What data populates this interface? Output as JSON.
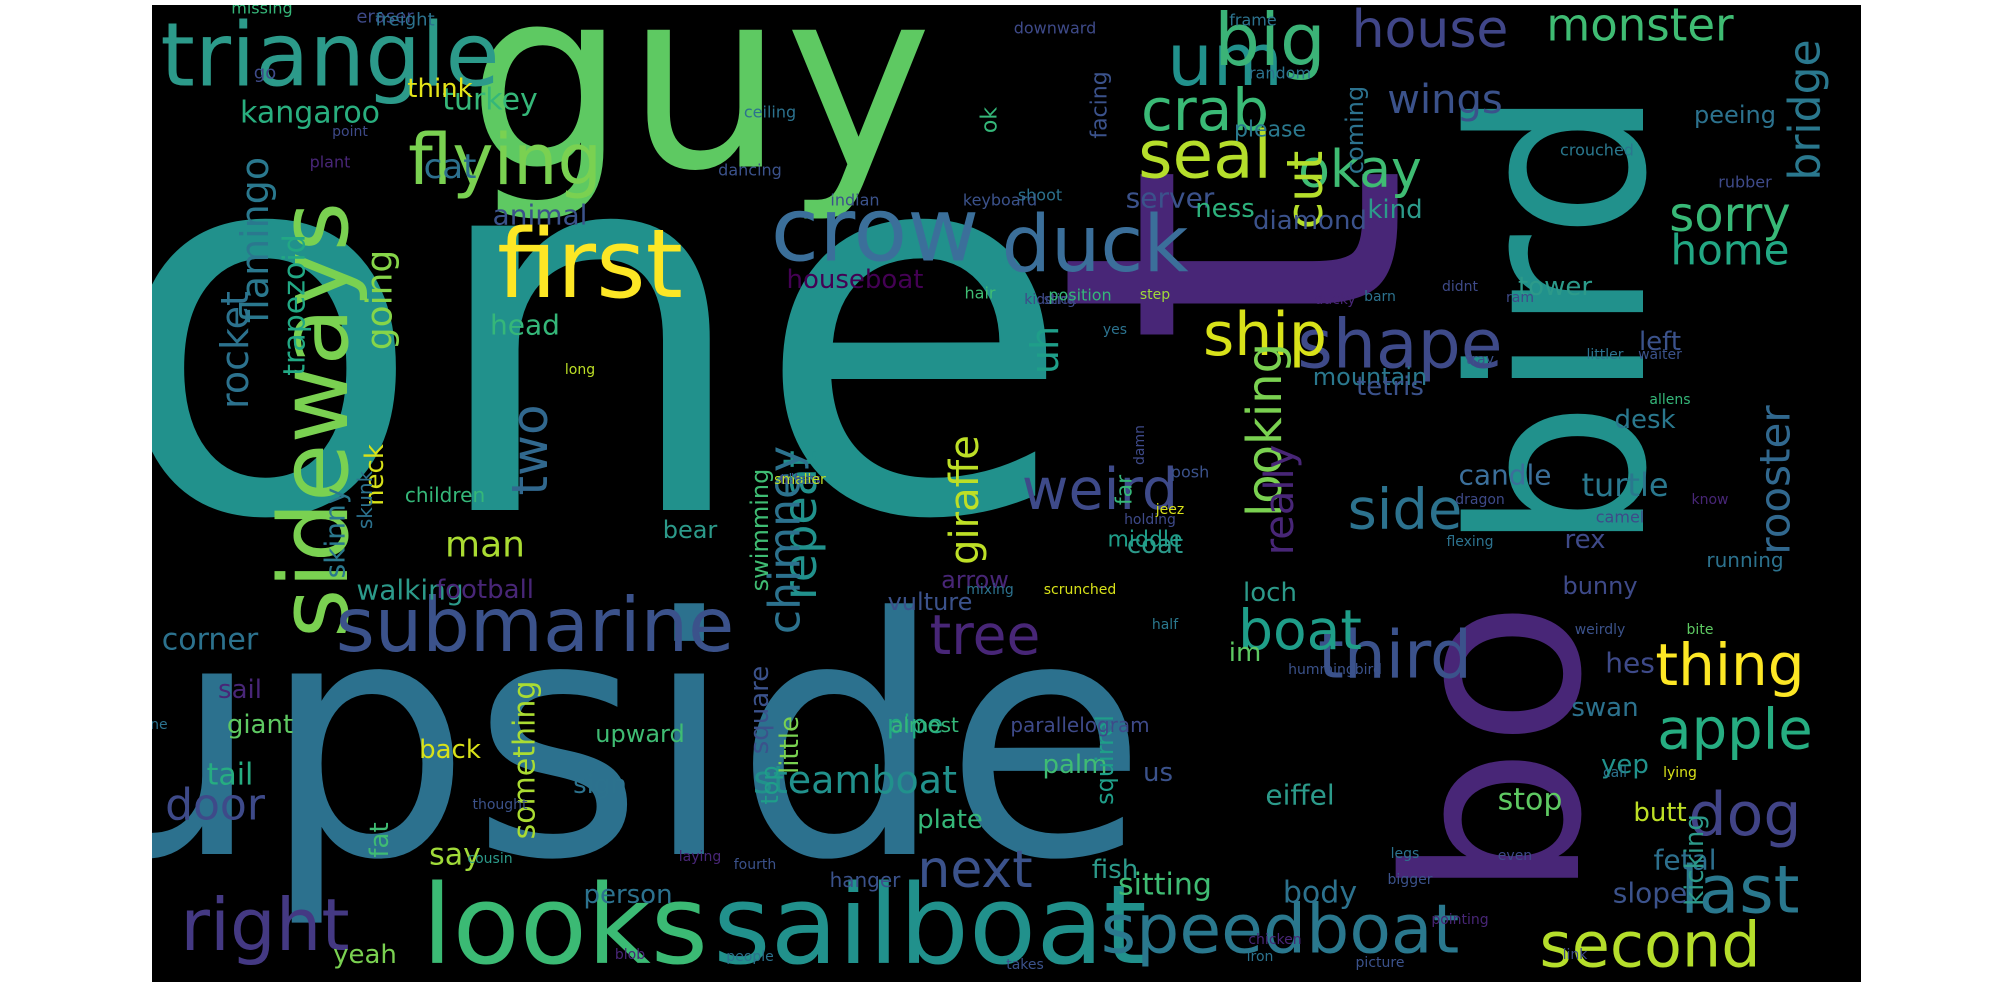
{
  "chart_data": {
    "type": "wordcloud",
    "title": "",
    "background": "#000000",
    "palette": "viridis",
    "words": [
      {
        "text": "one",
        "color": "#21918c"
      },
      {
        "text": "upside",
        "color": "#2c718e"
      },
      {
        "text": "guy",
        "color": "#5ec962"
      },
      {
        "text": "bird",
        "color": "#21918c"
      },
      {
        "text": "bo",
        "color": "#482677"
      },
      {
        "text": "t",
        "color": "#482677"
      },
      {
        "text": "sailboat",
        "color": "#21918c"
      },
      {
        "text": "looks",
        "color": "#3bba74"
      },
      {
        "text": "sideways",
        "color": "#7ad151"
      },
      {
        "text": "triangle",
        "color": "#2c9a8a"
      },
      {
        "text": "first",
        "color": "#fde725"
      },
      {
        "text": "submarine",
        "color": "#3b528b"
      },
      {
        "text": "crow",
        "color": "#3b6f9a"
      },
      {
        "text": "speedboat",
        "color": "#2a788e"
      },
      {
        "text": "um",
        "color": "#21918c"
      },
      {
        "text": "big",
        "color": "#3bb377"
      },
      {
        "text": "duck",
        "color": "#3b6f9a"
      },
      {
        "text": "flying",
        "color": "#7ad151"
      },
      {
        "text": "seal",
        "color": "#b5de2b"
      },
      {
        "text": "shape",
        "color": "#3e4a89"
      },
      {
        "text": "third",
        "color": "#3b528b"
      },
      {
        "text": "house",
        "color": "#404688"
      },
      {
        "text": "monster",
        "color": "#3fbc73"
      },
      {
        "text": "second",
        "color": "#b5de2b"
      },
      {
        "text": "right",
        "color": "#443983"
      },
      {
        "text": "last",
        "color": "#2a788e"
      },
      {
        "text": "dog",
        "color": "#414487"
      },
      {
        "text": "apple",
        "color": "#26ad81"
      },
      {
        "text": "thing",
        "color": "#fde725"
      },
      {
        "text": "ship",
        "color": "#d8e219"
      },
      {
        "text": "crab",
        "color": "#3aba76"
      },
      {
        "text": "weird",
        "color": "#3e4a89"
      },
      {
        "text": "side",
        "color": "#2c728e"
      },
      {
        "text": "boat",
        "color": "#1f9e89"
      },
      {
        "text": "okay",
        "color": "#3fbc73"
      },
      {
        "text": "sorry",
        "color": "#38b977"
      },
      {
        "text": "home",
        "color": "#22a884"
      },
      {
        "text": "cut",
        "color": "#b5de2b"
      },
      {
        "text": "looking",
        "color": "#7ad151"
      },
      {
        "text": "bridge",
        "color": "#2a788e"
      },
      {
        "text": "wings",
        "color": "#3b528b"
      },
      {
        "text": "rooster",
        "color": "#31688e"
      },
      {
        "text": "tree",
        "color": "#482677"
      },
      {
        "text": "next",
        "color": "#3b528b"
      },
      {
        "text": "giraffe",
        "color": "#bddf26"
      },
      {
        "text": "repeat",
        "color": "#21918c"
      },
      {
        "text": "chimney",
        "color": "#2c728e"
      },
      {
        "text": "two",
        "color": "#31688e"
      },
      {
        "text": "going",
        "color": "#86d549"
      },
      {
        "text": "man",
        "color": "#aadc32"
      },
      {
        "text": "cat",
        "color": "#2d708e"
      },
      {
        "text": "kangaroo",
        "color": "#29af7f"
      },
      {
        "text": "turkey",
        "color": "#35b779"
      },
      {
        "text": "think",
        "color": "#e5e419"
      },
      {
        "text": "animal",
        "color": "#3b528b"
      },
      {
        "text": "head",
        "color": "#35b779"
      },
      {
        "text": "houseboat",
        "color": "#440154"
      },
      {
        "text": "server",
        "color": "#3b528b"
      },
      {
        "text": "ness",
        "color": "#2db27d"
      },
      {
        "text": "diamond",
        "color": "#3b528b"
      },
      {
        "text": "kind",
        "color": "#2c9a8a"
      },
      {
        "text": "rocket",
        "color": "#2c728e"
      },
      {
        "text": "flamingo",
        "color": "#2a788e"
      },
      {
        "text": "trapezoid",
        "color": "#22a884"
      },
      {
        "text": "uh",
        "color": "#1f9e89"
      },
      {
        "text": "mountain",
        "color": "#2a788e"
      },
      {
        "text": "tetris",
        "color": "#3b528b"
      },
      {
        "text": "desk",
        "color": "#2a788e"
      },
      {
        "text": "left",
        "color": "#3b528b"
      },
      {
        "text": "tower",
        "color": "#2c9a8a"
      },
      {
        "text": "candle",
        "color": "#3b6f9a"
      },
      {
        "text": "turtle",
        "color": "#2a788e"
      },
      {
        "text": "rex",
        "color": "#3e4a89"
      },
      {
        "text": "bunny",
        "color": "#3e4a89"
      },
      {
        "text": "hes",
        "color": "#3e4a89"
      },
      {
        "text": "swan",
        "color": "#2c728e"
      },
      {
        "text": "yep",
        "color": "#21918c"
      },
      {
        "text": "stop",
        "color": "#5ec962"
      },
      {
        "text": "butt",
        "color": "#bddf26"
      },
      {
        "text": "fetal",
        "color": "#2d708e"
      },
      {
        "text": "kicking",
        "color": "#2c9a8a"
      },
      {
        "text": "slope",
        "color": "#3b528b"
      },
      {
        "text": "body",
        "color": "#2c728e"
      },
      {
        "text": "eiffel",
        "color": "#2c9a8a"
      },
      {
        "text": "sitting",
        "color": "#3fbc73"
      },
      {
        "text": "fish",
        "color": "#2c9a8a"
      },
      {
        "text": "palm",
        "color": "#3fbc73"
      },
      {
        "text": "plate",
        "color": "#35b779"
      },
      {
        "text": "pipe",
        "color": "#22a884"
      },
      {
        "text": "squirrel",
        "color": "#1f9e89"
      },
      {
        "text": "us",
        "color": "#3b528b"
      },
      {
        "text": "im",
        "color": "#5ec962"
      },
      {
        "text": "loch",
        "color": "#2c9a8a"
      },
      {
        "text": "coat",
        "color": "#2c9a8a"
      },
      {
        "text": "vulture",
        "color": "#3b528b"
      },
      {
        "text": "arrow",
        "color": "#482677"
      },
      {
        "text": "really",
        "color": "#482677"
      },
      {
        "text": "steamboat",
        "color": "#21918c"
      },
      {
        "text": "little",
        "color": "#7ad151"
      },
      {
        "text": "top",
        "color": "#1f9e89"
      },
      {
        "text": "square",
        "color": "#3b528b"
      },
      {
        "text": "swimming",
        "color": "#3fbc73"
      },
      {
        "text": "walking",
        "color": "#2c9a8a"
      },
      {
        "text": "skinny",
        "color": "#2a788e"
      },
      {
        "text": "neck",
        "color": "#d8e219"
      },
      {
        "text": "corner",
        "color": "#2c728e"
      },
      {
        "text": "football",
        "color": "#482677"
      },
      {
        "text": "door",
        "color": "#3e4a89"
      },
      {
        "text": "say",
        "color": "#a0da39"
      },
      {
        "text": "sail",
        "color": "#482677"
      },
      {
        "text": "giant",
        "color": "#5ec962"
      },
      {
        "text": "tail",
        "color": "#26ad81"
      },
      {
        "text": "yeah",
        "color": "#7ad151"
      },
      {
        "text": "fat",
        "color": "#3fbc73"
      },
      {
        "text": "back",
        "color": "#d8e219"
      },
      {
        "text": "something",
        "color": "#aadc32"
      },
      {
        "text": "sign",
        "color": "#2c728e"
      },
      {
        "text": "person",
        "color": "#2c728e"
      },
      {
        "text": "upward",
        "color": "#3fbc73"
      },
      {
        "text": "bear",
        "color": "#2c9a8a"
      },
      {
        "text": "middle",
        "color": "#1f9e89"
      },
      {
        "text": "far",
        "color": "#35b779"
      },
      {
        "text": "ok",
        "color": "#35b779"
      },
      {
        "text": "facing",
        "color": "#3b528b"
      },
      {
        "text": "please",
        "color": "#2a788e"
      },
      {
        "text": "coming",
        "color": "#2c728e"
      },
      {
        "text": "peeing",
        "color": "#2c728e"
      },
      {
        "text": "running",
        "color": "#2c728e"
      },
      {
        "text": "hanger",
        "color": "#3b528b"
      },
      {
        "text": "almost",
        "color": "#35b779"
      },
      {
        "text": "parallelogram",
        "color": "#3e4a89"
      },
      {
        "text": "skunk",
        "color": "#2c728e"
      },
      {
        "text": "children",
        "color": "#35b779"
      },
      {
        "text": "missing",
        "color": "#35b779"
      },
      {
        "text": "eraser",
        "color": "#3e4a89"
      },
      {
        "text": "freight",
        "color": "#2c728e"
      },
      {
        "text": "downward",
        "color": "#3e4a89"
      },
      {
        "text": "frame",
        "color": "#2c728e"
      },
      {
        "text": "random",
        "color": "#2c728e"
      },
      {
        "text": "go",
        "color": "#3e4a89"
      },
      {
        "text": "point",
        "color": "#3e4a89"
      },
      {
        "text": "plant",
        "color": "#482677"
      },
      {
        "text": "ceiling",
        "color": "#2c728e"
      },
      {
        "text": "dancing",
        "color": "#3b528b"
      },
      {
        "text": "indian",
        "color": "#3b528b"
      },
      {
        "text": "keyboard",
        "color": "#3b528b"
      },
      {
        "text": "crouched",
        "color": "#2a788e"
      },
      {
        "text": "rubber",
        "color": "#3e4a89"
      },
      {
        "text": "shoot",
        "color": "#2c728e"
      },
      {
        "text": "step",
        "color": "#a0da39"
      },
      {
        "text": "kidding",
        "color": "#3e4a89"
      },
      {
        "text": "hair",
        "color": "#3fbc73"
      },
      {
        "text": "stick",
        "color": "#3e4a89"
      },
      {
        "text": "position",
        "color": "#35b779"
      },
      {
        "text": "barn",
        "color": "#2c728e"
      },
      {
        "text": "didnt",
        "color": "#3e4a89"
      },
      {
        "text": "ducky",
        "color": "#482677"
      },
      {
        "text": "ram",
        "color": "#3e4a89"
      },
      {
        "text": "yes",
        "color": "#2c728e"
      },
      {
        "text": "tray",
        "color": "#3b528b"
      },
      {
        "text": "littler",
        "color": "#2c728e"
      },
      {
        "text": "waiter",
        "color": "#3b528b"
      },
      {
        "text": "long",
        "color": "#bddf26"
      },
      {
        "text": "dragon",
        "color": "#3e4a89"
      },
      {
        "text": "damn",
        "color": "#3e4a89"
      },
      {
        "text": "posh",
        "color": "#3b528b"
      },
      {
        "text": "allens",
        "color": "#35b779"
      },
      {
        "text": "know",
        "color": "#482677"
      },
      {
        "text": "holding",
        "color": "#3e4a89"
      },
      {
        "text": "jeez",
        "color": "#d8e219"
      },
      {
        "text": "camel",
        "color": "#3e4a89"
      },
      {
        "text": "flexing",
        "color": "#2c728e"
      },
      {
        "text": "weirdly",
        "color": "#3b528b"
      },
      {
        "text": "bite",
        "color": "#5ec962"
      },
      {
        "text": "mixing",
        "color": "#2c728e"
      },
      {
        "text": "scrunched",
        "color": "#d8e219"
      },
      {
        "text": "half",
        "color": "#2a788e"
      },
      {
        "text": "hummingbird",
        "color": "#3b528b"
      },
      {
        "text": "line",
        "color": "#2c728e"
      },
      {
        "text": "call",
        "color": "#2c728e"
      },
      {
        "text": "lying",
        "color": "#d8e219"
      },
      {
        "text": "thought",
        "color": "#3b528b"
      },
      {
        "text": "cousin",
        "color": "#2c9a8a"
      },
      {
        "text": "laying",
        "color": "#482677"
      },
      {
        "text": "fourth",
        "color": "#3b528b"
      },
      {
        "text": "legs",
        "color": "#2c728e"
      },
      {
        "text": "bigger",
        "color": "#3b528b"
      },
      {
        "text": "even",
        "color": "#3e4a89"
      },
      {
        "text": "pointing",
        "color": "#482677"
      },
      {
        "text": "link",
        "color": "#3e4a89"
      },
      {
        "text": "blob",
        "color": "#482677"
      },
      {
        "text": "people",
        "color": "#2c728e"
      },
      {
        "text": "chicken",
        "color": "#482677"
      },
      {
        "text": "takes",
        "color": "#3b528b"
      },
      {
        "text": "iron",
        "color": "#2c728e"
      },
      {
        "text": "picture",
        "color": "#3b528b"
      },
      {
        "text": "whats",
        "color": "#3e4a89"
      },
      {
        "text": "taken",
        "color": "#3e4a89"
      },
      {
        "text": "smaller",
        "color": "#bddf26"
      },
      {
        "text": "hat",
        "color": "#2c728e"
      }
    ]
  }
}
